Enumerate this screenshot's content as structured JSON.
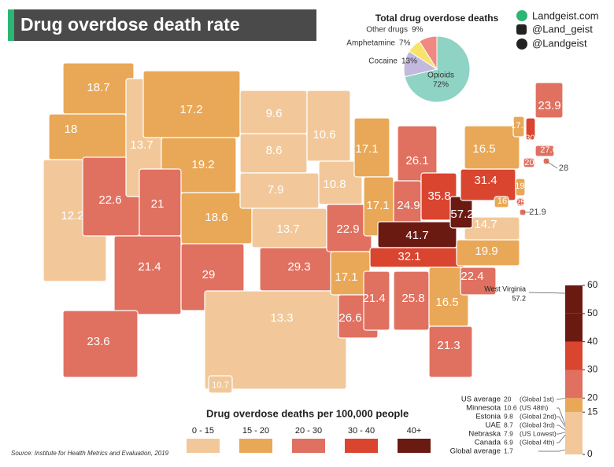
{
  "title": "Drug overdose death rate",
  "social": [
    "Landgeist.com",
    "@Land_geist",
    "@Landgeist"
  ],
  "pie": {
    "type": "pie",
    "title": "Total drug overdose deaths",
    "categories": [
      "Opioids",
      "Cocaine",
      "Amphetamine",
      "Other drugs"
    ],
    "values": [
      72,
      13,
      7,
      9
    ],
    "value_labels": [
      "72%",
      "13%",
      "7%",
      "9%"
    ],
    "colors": [
      "#8fd3c4",
      "#c3b8de",
      "#f7e36a",
      "#f08a80"
    ]
  },
  "map": {
    "type": "choropleth",
    "values": [
      18.7,
      18,
      12.2,
      22.6,
      13.7,
      17.2,
      19.2,
      21,
      18.6,
      21.4,
      29,
      9.6,
      8.6,
      7.9,
      13.7,
      29.3,
      13.3,
      10.6,
      10.8,
      22.9,
      17.1,
      26.6,
      17.1,
      17.1,
      26.1,
      24.9,
      35.8,
      41.7,
      32.1,
      21.4,
      25.8,
      16.5,
      21.3,
      22.4,
      19.9,
      14.7,
      57.2,
      31.4,
      16.5,
      16,
      25.4,
      21.9,
      19.1,
      20.1,
      28,
      27.6,
      17.2,
      30.8,
      23.9,
      23.6,
      10.7
    ],
    "legend_title": "Drug overdose deaths per 100,000 people",
    "legend": [
      "0 - 15",
      "15 - 20",
      "20 - 30",
      "30 - 40",
      "40+"
    ],
    "scale_ticks": [
      0,
      15,
      20,
      30,
      40,
      50,
      60
    ],
    "scale_colors": [
      "#f2c89a",
      "#e9a857",
      "#e07060",
      "#d9452f",
      "#6b1a12",
      "#6b1a12"
    ],
    "highlight": {
      "label": "West Virginia",
      "value": 57.2
    },
    "annotations": [
      {
        "label": "US average",
        "value": 20,
        "note": "(Global 1st)"
      },
      {
        "label": "Minnesota",
        "value": 10.6,
        "note": "(US 48th)"
      },
      {
        "label": "Estonia",
        "value": 9.8,
        "note": "(Global 2nd)"
      },
      {
        "label": "UAE",
        "value": 8.7,
        "note": "(Global 3rd)"
      },
      {
        "label": "Nebraska",
        "value": 7.9,
        "note": "(US Lowest)"
      },
      {
        "label": "Canada",
        "value": 6.9,
        "note": "(Global 4th)"
      },
      {
        "label": "Global average",
        "value": 1.7
      }
    ]
  },
  "source": "Source: Institute for Health Metrics and Evaluation, 2019"
}
